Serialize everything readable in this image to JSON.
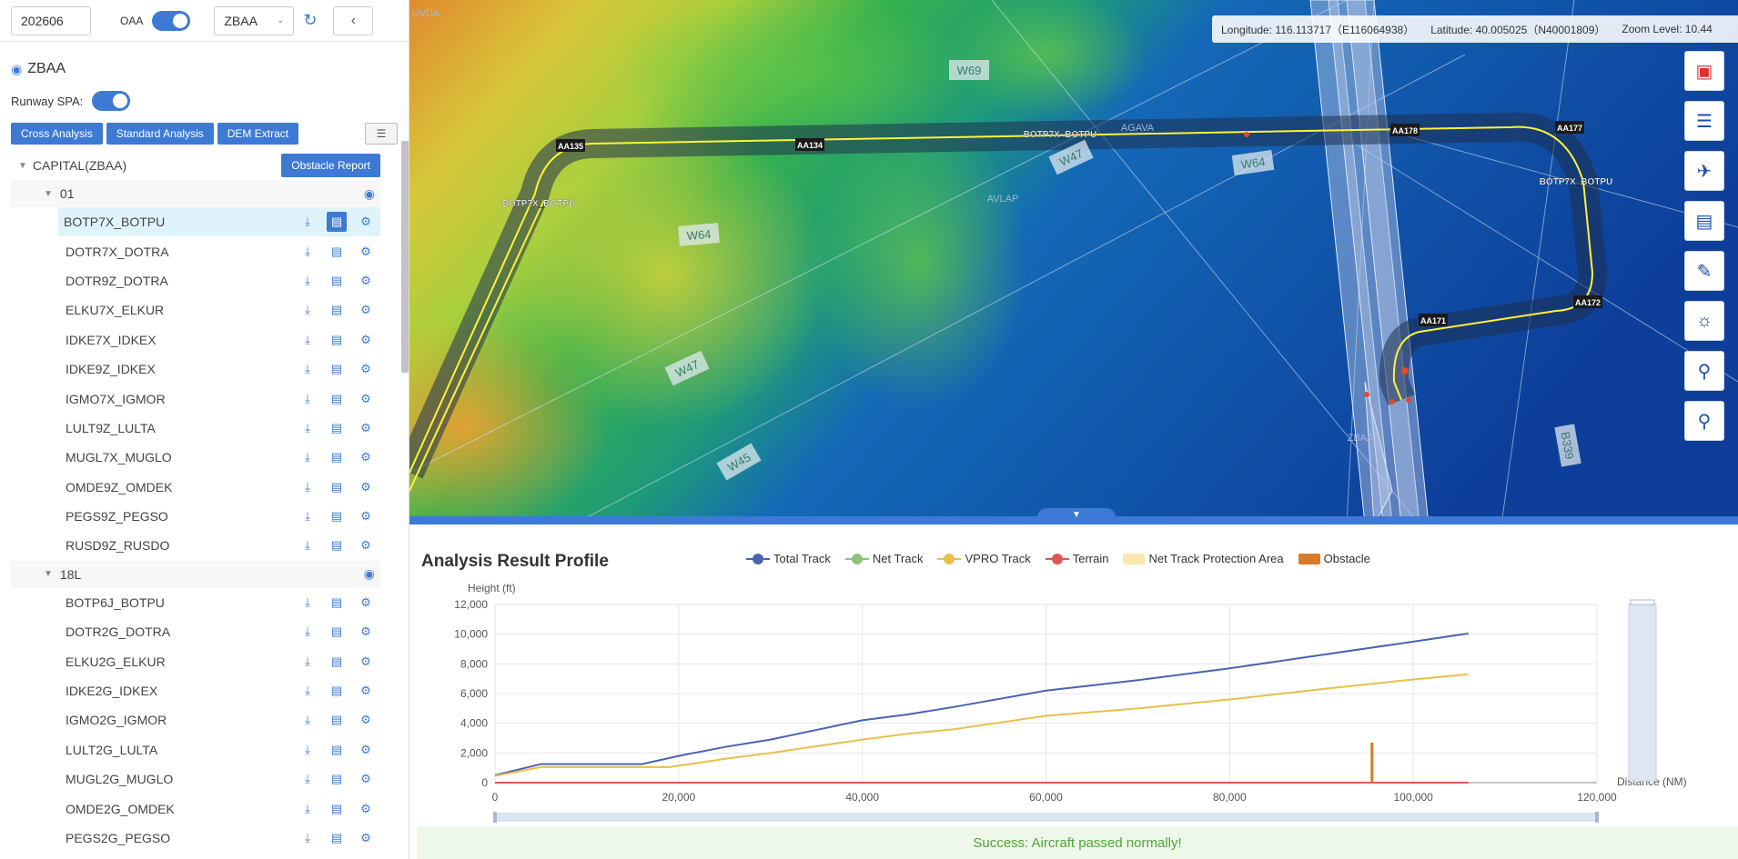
{
  "topbar": {
    "year_value": "202606",
    "oaa_label": "OAA",
    "airport_select": "ZBAA"
  },
  "airport": {
    "code": "ZBAA",
    "runway_spa_label": "Runway SPA:"
  },
  "buttons": {
    "cross": "Cross Analysis",
    "standard": "Standard Analysis",
    "dem": "DEM Extract",
    "obstacle_report": "Obstacle Report"
  },
  "tree": {
    "root": "CAPITAL(ZBAA)",
    "groups": [
      {
        "name": "01",
        "items": [
          "BOTP7X_BOTPU",
          "DOTR7X_DOTRA",
          "DOTR9Z_DOTRA",
          "ELKU7X_ELKUR",
          "IDKE7X_IDKEX",
          "IDKE9Z_IDKEX",
          "IGMO7X_IGMOR",
          "LULT9Z_LULTA",
          "MUGL7X_MUGLO",
          "OMDE9Z_OMDEK",
          "PEGS9Z_PEGSO",
          "RUSD9Z_RUSDO"
        ]
      },
      {
        "name": "18L",
        "items": [
          "BOTP6J_BOTPU",
          "DOTR2G_DOTRA",
          "ELKU2G_ELKUR",
          "IDKE2G_IDKEX",
          "IGMO2G_IGMOR",
          "LULT2G_LULTA",
          "MUGL2G_MUGLO",
          "OMDE2G_OMDEK",
          "PEGS2G_PEGSO"
        ]
      }
    ]
  },
  "map": {
    "longitude_label": "Longitude:",
    "longitude_value": "116.113717（E116064938）",
    "latitude_label": "Latitude:",
    "latitude_value": "40.005025（N40001809）",
    "zoom_label": "Zoom Level:",
    "zoom_value": "10.44",
    "airways": [
      "W69",
      "W47",
      "W64",
      "W64",
      "W47",
      "W45",
      "B339"
    ],
    "waypoints": [
      "AA135",
      "AA134",
      "AA178",
      "AA177",
      "AA172",
      "AA171"
    ],
    "route_labels": [
      "BOTP7X_BOTPU",
      "BOTP7X_BOTPU",
      "BOTP7X_BOTPU"
    ],
    "place_labels": [
      "ZBAA",
      "AVLAP",
      "UVDA",
      "AGAVA"
    ]
  },
  "profile": {
    "title": "Analysis Result Profile",
    "success": "Success: Aircraft passed normally!"
  },
  "chart_data": {
    "type": "line",
    "title": "",
    "ylabel": "Height (ft)",
    "xlabel": "Distance (NM)",
    "xlim": [
      0,
      120000
    ],
    "ylim": [
      0,
      12000
    ],
    "x_ticks": [
      "0",
      "20,000",
      "40,000",
      "60,000",
      "80,000",
      "100,000",
      "120,000"
    ],
    "y_ticks": [
      "0",
      "2,000",
      "4,000",
      "6,000",
      "8,000",
      "10,000",
      "12,000"
    ],
    "legend_position": "top",
    "series": [
      {
        "name": "Total Track",
        "color": "#4a63b0",
        "x": [
          0,
          5000,
          10000,
          16000,
          20000,
          25000,
          30000,
          40000,
          45000,
          50000,
          60000,
          70000,
          80000,
          90000,
          100000,
          106000
        ],
        "y": [
          500,
          1250,
          1250,
          1250,
          1800,
          2400,
          2900,
          4200,
          4600,
          5100,
          6200,
          6900,
          7700,
          8600,
          9500,
          10050
        ]
      },
      {
        "name": "Net Track",
        "color": "#8bc37a",
        "x": [],
        "y": []
      },
      {
        "name": "VPRO Track",
        "color": "#e8c04a",
        "x": [
          0,
          5000,
          10000,
          19000,
          25000,
          30000,
          40000,
          45000,
          50000,
          60000,
          70000,
          80000,
          90000,
          100000,
          106000
        ],
        "y": [
          450,
          1050,
          1050,
          1050,
          1600,
          2000,
          2900,
          3300,
          3600,
          4500,
          5000,
          5600,
          6300,
          6950,
          7300
        ]
      },
      {
        "name": "Terrain",
        "color": "#e05656",
        "x": [
          0,
          106000
        ],
        "y": [
          0,
          0
        ]
      },
      {
        "name": "Net Track Protection Area",
        "color": "#fbe8ad",
        "x": [],
        "y": []
      },
      {
        "name": "Obstacle",
        "color": "#d97a2a",
        "x": [
          95500
        ],
        "y": [
          2700
        ]
      }
    ]
  }
}
